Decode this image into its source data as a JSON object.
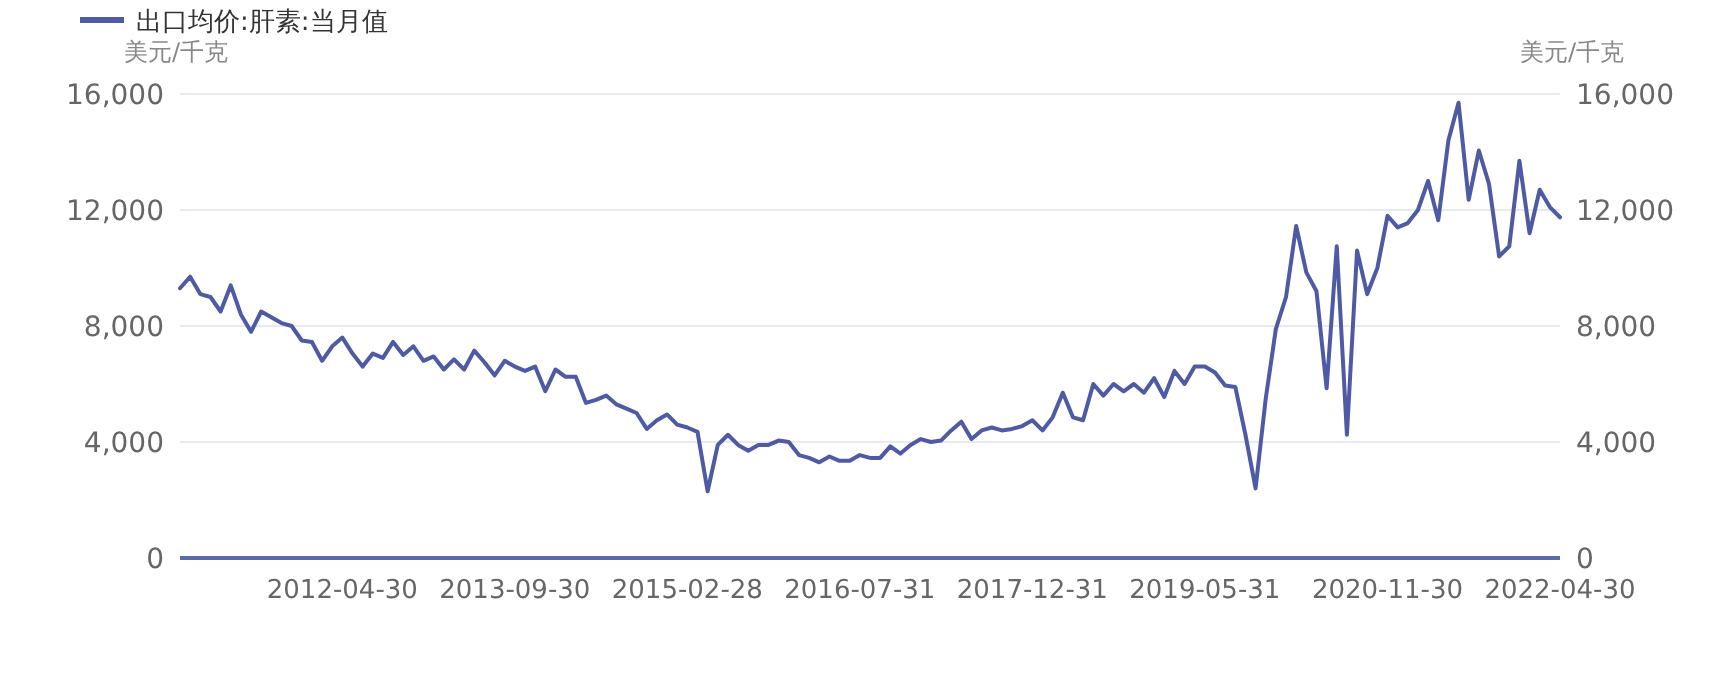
{
  "chart_data": {
    "type": "line",
    "ylabel": "美元/千克",
    "y2label": "美元/千克",
    "legend": "top left",
    "grid": "y",
    "line_style": "solid",
    "marker": "none",
    "x": [
      "2010-12",
      "2011-01",
      "2011-02",
      "2011-03",
      "2011-04",
      "2011-05",
      "2011-06",
      "2011-07",
      "2011-08",
      "2011-09",
      "2011-10",
      "2011-11",
      "2011-12",
      "2012-01",
      "2012-02",
      "2012-03",
      "2012-04",
      "2012-05",
      "2012-06",
      "2012-07",
      "2012-08",
      "2012-09",
      "2012-10",
      "2012-11",
      "2012-12",
      "2013-01",
      "2013-02",
      "2013-03",
      "2013-04",
      "2013-05",
      "2013-06",
      "2013-07",
      "2013-08",
      "2013-09",
      "2013-10",
      "2013-11",
      "2013-12",
      "2014-01",
      "2014-02",
      "2014-03",
      "2014-04",
      "2014-05",
      "2014-06",
      "2014-07",
      "2014-08",
      "2014-09",
      "2014-10",
      "2014-11",
      "2014-12",
      "2015-01",
      "2015-02",
      "2015-03",
      "2015-04",
      "2015-05",
      "2015-06",
      "2015-07",
      "2015-08",
      "2015-09",
      "2015-10",
      "2015-11",
      "2015-12",
      "2016-01",
      "2016-02",
      "2016-03",
      "2016-04",
      "2016-05",
      "2016-06",
      "2016-07",
      "2016-08",
      "2016-09",
      "2016-10",
      "2016-11",
      "2016-12",
      "2017-01",
      "2017-02",
      "2017-03",
      "2017-04",
      "2017-05",
      "2017-06",
      "2017-07",
      "2017-08",
      "2017-09",
      "2017-10",
      "2017-11",
      "2017-12",
      "2018-01",
      "2018-02",
      "2018-03",
      "2018-04",
      "2018-05",
      "2018-06",
      "2018-07",
      "2018-08",
      "2018-09",
      "2018-10",
      "2018-11",
      "2018-12",
      "2019-01",
      "2019-02",
      "2019-03",
      "2019-04",
      "2019-05",
      "2019-06",
      "2019-07",
      "2019-08",
      "2019-09",
      "2019-10",
      "2019-11",
      "2019-12",
      "2020-01",
      "2020-02",
      "2020-03",
      "2020-04",
      "2020-05",
      "2020-06",
      "2020-07",
      "2020-08",
      "2020-09",
      "2020-10",
      "2020-11",
      "2020-12",
      "2021-01",
      "2021-02",
      "2021-03",
      "2021-04",
      "2021-05",
      "2021-06",
      "2021-07",
      "2021-08",
      "2021-09",
      "2021-10",
      "2021-11",
      "2021-12",
      "2022-01",
      "2022-02",
      "2022-03",
      "2022-04"
    ],
    "series": [
      {
        "name": "出口均价:肝素:当月值",
        "color": "#4e5aa3",
        "values": [
          9300,
          9700,
          9100,
          9000,
          8500,
          9400,
          8400,
          7800,
          8500,
          8300,
          8100,
          8000,
          7500,
          7450,
          6800,
          7300,
          7600,
          7050,
          6600,
          7050,
          6900,
          7450,
          7000,
          7300,
          6800,
          6950,
          6500,
          6850,
          6500,
          7150,
          6750,
          6300,
          6800,
          6600,
          6450,
          6600,
          5750,
          6500,
          6250,
          6250,
          5350,
          5450,
          5600,
          5300,
          5150,
          5000,
          4450,
          4750,
          4950,
          4600,
          4500,
          4350,
          2300,
          3900,
          4250,
          3900,
          3700,
          3900,
          3900,
          4050,
          4000,
          3550,
          3450,
          3300,
          3500,
          3350,
          3350,
          3550,
          3450,
          3450,
          3850,
          3600,
          3900,
          4100,
          4000,
          4050,
          4400,
          4700,
          4100,
          4400,
          4500,
          4400,
          4450,
          4550,
          4750,
          4400,
          4850,
          5700,
          4850,
          4750,
          6000,
          5600,
          6000,
          5750,
          6000,
          5700,
          6200,
          5550,
          6450,
          6000,
          6600,
          6600,
          6400,
          5950,
          5900,
          4250,
          2400,
          5500,
          7900,
          9000,
          11450,
          9850,
          9200,
          5850,
          10750,
          4250,
          10600,
          9100,
          10000,
          11800,
          11400,
          11550,
          12000,
          13000,
          11650,
          14400,
          15700,
          12350,
          14050,
          12900,
          10400,
          10750,
          13700,
          11200,
          12700,
          12100,
          11750
        ]
      }
    ],
    "xlim": [
      "2010-12",
      "2022-04"
    ],
    "xticks": [
      {
        "value": "2012-04",
        "label": "2012-04-30"
      },
      {
        "value": "2013-09",
        "label": "2013-09-30"
      },
      {
        "value": "2015-02",
        "label": "2015-02-28"
      },
      {
        "value": "2016-07",
        "label": "2016-07-31"
      },
      {
        "value": "2017-12",
        "label": "2017-12-31"
      },
      {
        "value": "2019-05",
        "label": "2019-05-31"
      },
      {
        "value": "2020-11",
        "label": "2020-11-30"
      },
      {
        "value": "2022-04",
        "label": "2022-04-30"
      }
    ],
    "ylim": [
      0,
      16000
    ],
    "yticks": [
      {
        "value": 0,
        "label": "0"
      },
      {
        "value": 4000,
        "label": "4,000"
      },
      {
        "value": 8000,
        "label": "8,000"
      },
      {
        "value": 12000,
        "label": "12,000"
      },
      {
        "value": 16000,
        "label": "16,000"
      }
    ],
    "y2lim": [
      0,
      16000
    ],
    "y2ticks": [
      {
        "value": 0,
        "label": "0"
      },
      {
        "value": 4000,
        "label": "4,000"
      },
      {
        "value": 8000,
        "label": "8,000"
      },
      {
        "value": 12000,
        "label": "12,000"
      },
      {
        "value": 16000,
        "label": "16,000"
      }
    ]
  }
}
